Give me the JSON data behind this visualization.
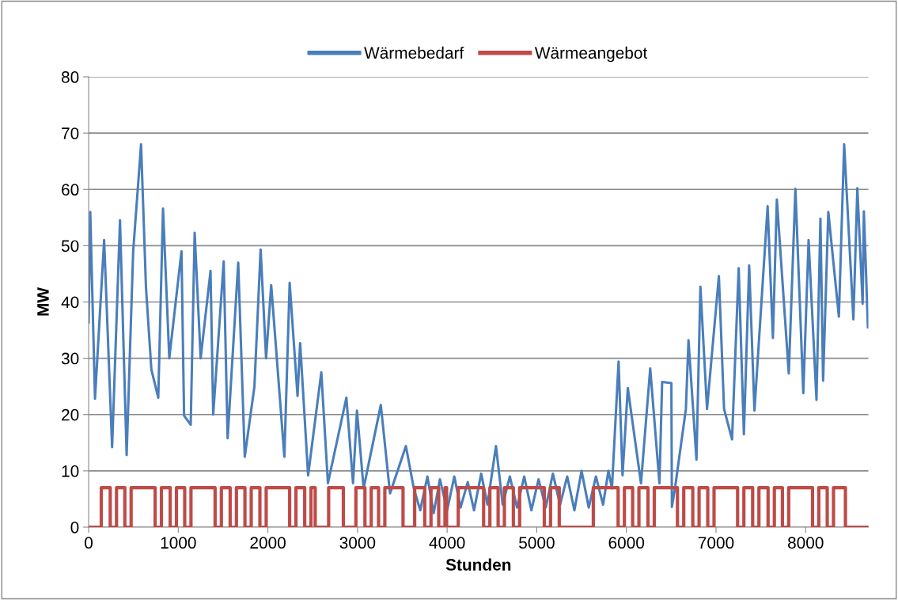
{
  "chart_data": {
    "type": "line",
    "xlabel": "Stunden",
    "ylabel": "MW",
    "xlim": [
      0,
      8700
    ],
    "xticks": [
      0,
      1000,
      2000,
      3000,
      4000,
      5000,
      6000,
      7000,
      8000
    ],
    "ylim": [
      0,
      80
    ],
    "yticks": [
      0,
      10,
      20,
      30,
      40,
      50,
      60,
      70,
      80
    ],
    "grid": "y",
    "legend": "top",
    "marker": "none",
    "line_style": "solid",
    "series": [
      {
        "name": "Wärmebedarf",
        "color": "#4a7ebb",
        "x": [
          0,
          18,
          71,
          173,
          262,
          350,
          424,
          497,
          585,
          640,
          700,
          777,
          830,
          900,
          1036,
          1065,
          1139,
          1183,
          1250,
          1360,
          1390,
          1507,
          1551,
          1669,
          1742,
          1850,
          1919,
          1980,
          2037,
          2184,
          2243,
          2331,
          2360,
          2449,
          2596,
          2670,
          2876,
          2950,
          2994,
          3068,
          3260,
          3363,
          3540,
          3628,
          3700,
          3780,
          3850,
          3920,
          4000,
          4080,
          4150,
          4230,
          4300,
          4380,
          4450,
          4545,
          4620,
          4700,
          4780,
          4860,
          4940,
          5020,
          5100,
          5180,
          5260,
          5340,
          5420,
          5500,
          5580,
          5660,
          5740,
          5800,
          5839,
          5913,
          5957,
          6016,
          6163,
          6266,
          6369,
          6399,
          6502,
          6508,
          6546,
          6664,
          6693,
          6782,
          6826,
          6900,
          7032,
          7090,
          7179,
          7253,
          7311,
          7370,
          7429,
          7576,
          7635,
          7679,
          7812,
          7886,
          7974,
          8033,
          8121,
          8165,
          8195,
          8253,
          8371,
          8430,
          8533,
          8577,
          8636,
          8650,
          8695
        ],
        "values": [
          36.4,
          56,
          22.8,
          51,
          14.2,
          54.5,
          12.8,
          49,
          68,
          42.5,
          28,
          23,
          56.6,
          30,
          49,
          19.8,
          18.2,
          52.3,
          30,
          45.5,
          20,
          47.2,
          15.8,
          47,
          12.5,
          25,
          49.3,
          30,
          43,
          12.5,
          43.4,
          23.3,
          32.7,
          9.2,
          27.5,
          7.8,
          23,
          7.8,
          20.7,
          6.9,
          21.7,
          6,
          14.4,
          6.9,
          3,
          9,
          2.5,
          8.5,
          3,
          9,
          3.5,
          8,
          3,
          9.5,
          4,
          14.4,
          4,
          9,
          3.5,
          9,
          3,
          8.5,
          3.5,
          9.5,
          4,
          9,
          3,
          10,
          3.5,
          9,
          4,
          10,
          6.9,
          29.4,
          9.2,
          24.7,
          7.8,
          28.2,
          7.8,
          25.8,
          25.6,
          3.6,
          7.3,
          21,
          33.2,
          12,
          42.7,
          21,
          44.6,
          21,
          15.6,
          46,
          16.5,
          46.5,
          20.7,
          57,
          33.6,
          58.2,
          27.3,
          60.1,
          23.8,
          51,
          22.6,
          54.8,
          26,
          56,
          37.4,
          68,
          36.9,
          60.2,
          39.7,
          56.1,
          35.5
        ]
      },
      {
        "name": "Wärmeangebot",
        "color": "#be4b48",
        "type": "step",
        "x": [
          0,
          141,
          241,
          311,
          404,
          474,
          742,
          812,
          910,
          980,
          1072,
          1142,
          1411,
          1481,
          1579,
          1649,
          1744,
          1814,
          1911,
          1981,
          2243,
          2313,
          2411,
          2481,
          2528,
          2678,
          2842,
          2982,
          3083,
          3153,
          3235,
          3305,
          3508,
          3638,
          3750,
          3820,
          3906,
          3976,
          3994,
          4124,
          4407,
          4477,
          4569,
          4639,
          4739,
          4809,
          5084,
          5154,
          5251,
          5631,
          5908,
          5978,
          6070,
          6140,
          6241,
          6311,
          6570,
          6640,
          6741,
          6811,
          6908,
          6978,
          7241,
          7311,
          7409,
          7479,
          7581,
          7651,
          7741,
          7811,
          8077,
          8147,
          8241,
          8311,
          8444,
          8695
        ],
        "values": [
          0,
          7,
          0,
          7,
          0,
          7,
          0,
          7,
          0,
          7,
          0,
          7,
          0,
          7,
          0,
          7,
          0,
          7,
          0,
          7,
          0,
          7,
          0,
          7,
          0,
          7,
          0,
          7,
          0,
          7,
          0,
          7,
          0,
          7,
          0,
          7,
          0,
          7,
          0,
          7,
          0,
          7,
          0,
          7,
          0,
          7,
          0,
          7,
          0,
          7,
          0,
          7,
          0,
          7,
          0,
          7,
          0,
          7,
          0,
          7,
          0,
          7,
          0,
          7,
          0,
          7,
          0,
          7,
          0,
          7,
          0,
          7,
          0,
          7,
          0,
          0
        ]
      }
    ]
  }
}
